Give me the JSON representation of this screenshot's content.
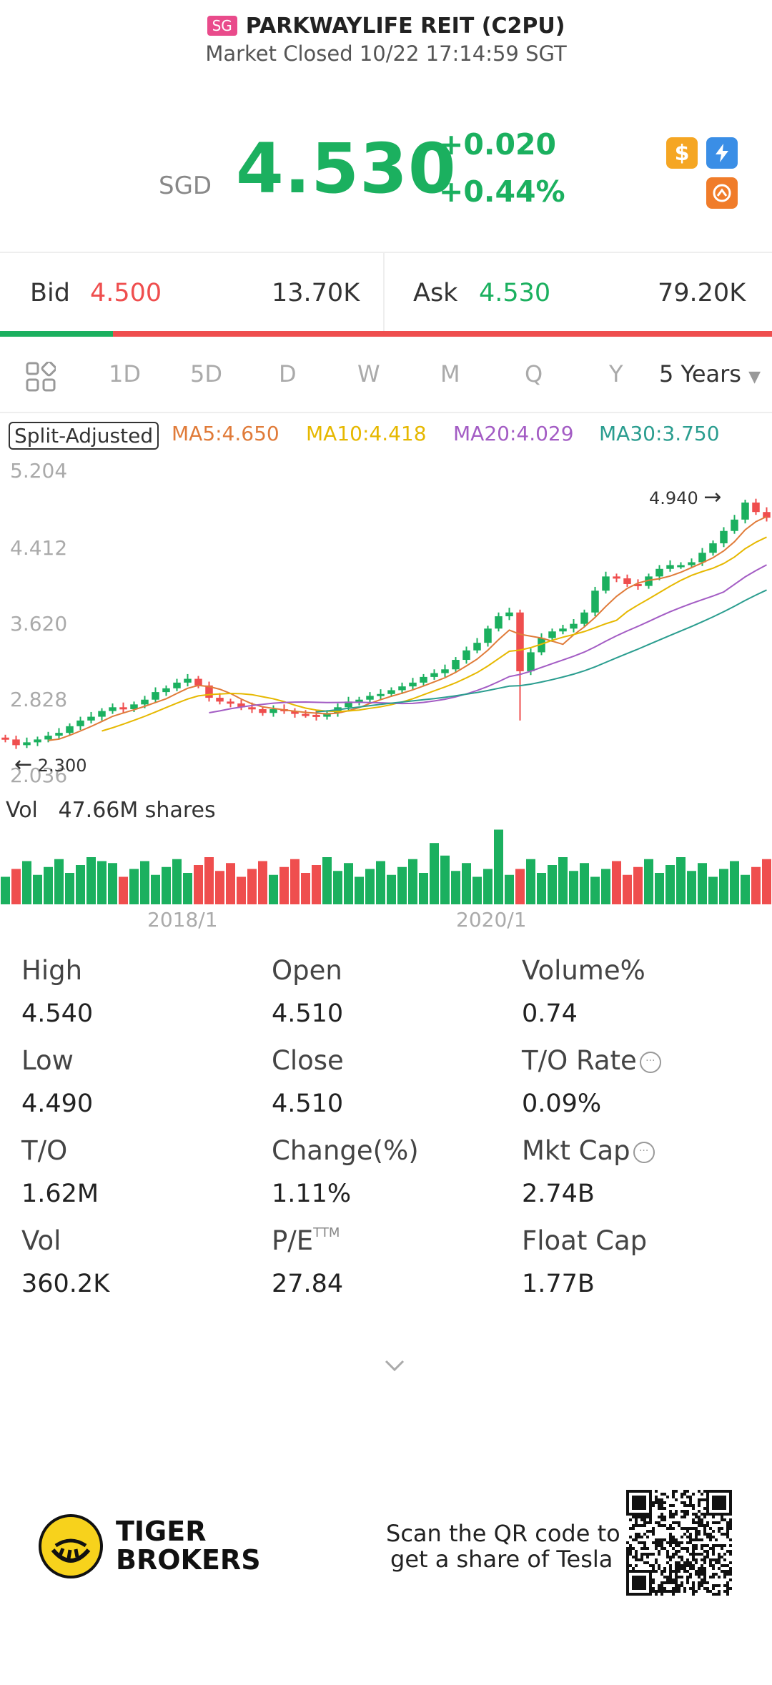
{
  "header": {
    "market_badge": "SG",
    "stock_name": "PARKWAYLIFE REIT (C2PU)",
    "status": "Market Closed 10/22 17:14:59 SGT"
  },
  "quote": {
    "currency": "SGD",
    "price": "4.530",
    "change": "+0.020",
    "change_pct": "+0.44%",
    "icons": [
      "dollar-icon",
      "lightning-icon",
      "dr-icon"
    ],
    "up_color": "#1bb05f",
    "down_color": "#ef4e4e"
  },
  "order_book": {
    "bid_label": "Bid",
    "bid_price": "4.500",
    "bid_size": "13.70K",
    "ask_label": "Ask",
    "ask_price": "4.530",
    "ask_size": "79.20K",
    "bid_ratio": 0.146
  },
  "tabs": {
    "items": [
      "1D",
      "5D",
      "D",
      "W",
      "M",
      "Q",
      "Y"
    ],
    "active": "5 Years"
  },
  "indicators": {
    "split": "Split-Adjusted",
    "ma5": "MA5:4.650",
    "ma10": "MA10:4.418",
    "ma20": "MA20:4.029",
    "ma30": "MA30:3.750"
  },
  "chart": {
    "y_labels": [
      "5.204",
      "4.412",
      "3.620",
      "2.828",
      "2.036"
    ],
    "high_marker": "4.940",
    "low_marker": "2.300",
    "vol_label": "Vol",
    "vol_value": "47.66M shares",
    "x_labels": [
      "2018/1",
      "2020/1"
    ]
  },
  "chart_data": {
    "type": "candlestick",
    "ylim": [
      2.036,
      5.204
    ],
    "title": "",
    "xlabel": "",
    "ylabel": "",
    "annotations": [
      "4.940",
      "2.300"
    ],
    "closes": [
      2.38,
      2.32,
      2.35,
      2.38,
      2.42,
      2.45,
      2.52,
      2.58,
      2.62,
      2.68,
      2.72,
      2.7,
      2.75,
      2.8,
      2.88,
      2.92,
      2.98,
      3.02,
      2.95,
      2.82,
      2.78,
      2.76,
      2.72,
      2.7,
      2.66,
      2.7,
      2.68,
      2.65,
      2.64,
      2.62,
      2.66,
      2.72,
      2.78,
      2.8,
      2.84,
      2.86,
      2.9,
      2.94,
      2.98,
      3.04,
      3.08,
      3.12,
      3.22,
      3.32,
      3.4,
      3.55,
      3.68,
      3.72,
      3.1,
      3.3,
      3.45,
      3.52,
      3.55,
      3.6,
      3.72,
      3.95,
      4.1,
      4.08,
      4.02,
      4.0,
      4.1,
      4.18,
      4.22,
      4.22,
      4.25,
      4.35,
      4.45,
      4.58,
      4.7,
      4.88,
      4.78,
      4.72
    ]
  },
  "stats": [
    {
      "label": "High",
      "value": "4.540"
    },
    {
      "label": "Open",
      "value": "4.510"
    },
    {
      "label": "Volume%",
      "value": "0.74"
    },
    {
      "label": "Low",
      "value": "4.490"
    },
    {
      "label": "Close",
      "value": "4.510"
    },
    {
      "label": "T/O Rate",
      "value": "0.09%"
    },
    {
      "label": "T/O",
      "value": "1.62M"
    },
    {
      "label": "Change(%)",
      "value": "1.11%"
    },
    {
      "label": "Mkt Cap",
      "value": "2.74B"
    },
    {
      "label": "Vol",
      "value": "360.2K"
    },
    {
      "label": "P/E",
      "value": "27.84"
    },
    {
      "label": "Float Cap",
      "value": "1.77B"
    }
  ],
  "pe_sup": "TTM",
  "footer": {
    "brand_line1": "TIGER",
    "brand_line2": "BROKERS",
    "qr_line1": "Scan the QR code to",
    "qr_line2": "get a share of Tesla"
  }
}
